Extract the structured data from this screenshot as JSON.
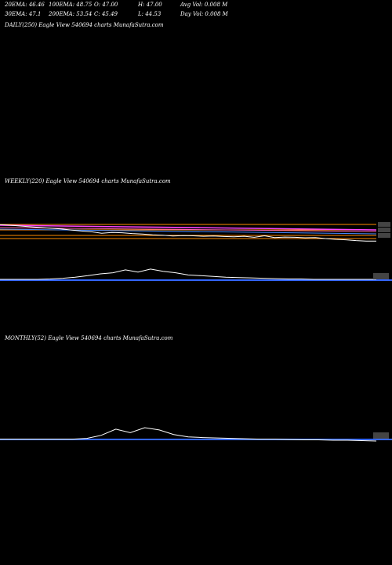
{
  "header": {
    "row1": [
      {
        "key": "ema20",
        "text": "20EMA: 46.46"
      },
      {
        "key": "ema100",
        "text": "100EMA: 48.75"
      },
      {
        "key": "open",
        "text": "O: 47.00"
      },
      {
        "key": "high",
        "text": "H: 47.00"
      },
      {
        "key": "avgvol",
        "text": "Avg Vol: 0.008  M"
      }
    ],
    "row2": [
      {
        "key": "ema30",
        "text": "30EMA: 47.1"
      },
      {
        "key": "ema200",
        "text": "200EMA: 53.54"
      },
      {
        "key": "close",
        "text": "C: 45.49"
      },
      {
        "key": "low",
        "text": "L: 44.53"
      },
      {
        "key": "dayvol",
        "text": "Day Vol: 0.008  M"
      }
    ]
  },
  "panels": {
    "daily": "DAILY(250) Eagle  View  540694  charts MunafaSutra.com",
    "weekly": "WEEKLY(220) Eagle  View  540694  charts MunafaSutra.com",
    "monthly": "MONTHLY(52) Eagle  View  540694  charts MunafaSutra.com"
  },
  "colors": {
    "background": "#000000",
    "price": "#ffffff",
    "ema_magenta": "#ff44ff",
    "ema_orange": "#ff8c00",
    "ema_blue": "#4488ff",
    "volume_bar": "#3366ff",
    "label_bg": "#444444"
  },
  "chart_data": [
    {
      "type": "line",
      "title": "WEEKLY(220) Eagle  View  540694  charts MunafaSutra.com",
      "series": [
        {
          "values": [
            52,
            51.8,
            51.5,
            51.2,
            50.9,
            50.6,
            50.3,
            49.9,
            49.5,
            49.2,
            48.6,
            48.9,
            48.8,
            48.5,
            48.3,
            48.0,
            47.8,
            47.5,
            47.7,
            47.6,
            47.4,
            47.5,
            47.3,
            47.2,
            47.4,
            47.0,
            47.6,
            46.9,
            47.1,
            47.0,
            46.8,
            46.9,
            46.5,
            46.2,
            46.0,
            45.7,
            45.5,
            45.49
          ]
        }
      ],
      "indicator_values": [
        88,
        88
      ]
    },
    {
      "type": "line",
      "title": "MONTHLY(52) Eagle  View  540694  charts MunafaSutra.com",
      "series": [
        {
          "values": [
            60,
            60,
            60,
            60,
            60,
            60,
            62,
            70,
            86,
            77,
            90,
            84,
            72,
            66,
            64,
            63,
            62,
            61,
            60,
            60,
            59,
            58,
            58,
            57,
            57,
            56,
            55
          ]
        }
      ],
      "indicator_values": [
        60
      ]
    }
  ]
}
